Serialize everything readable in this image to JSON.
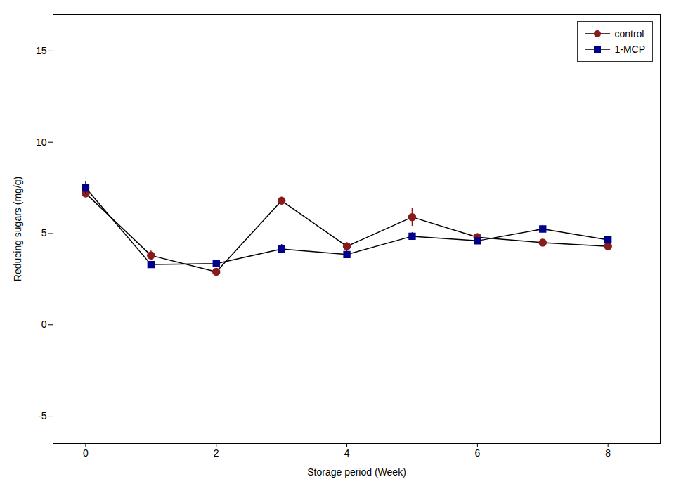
{
  "chart_data": {
    "type": "line",
    "xlabel": "Storage period (Week)",
    "ylabel": "Reducing sugars (mg/g)",
    "x": [
      0,
      1,
      2,
      3,
      4,
      5,
      6,
      7,
      8
    ],
    "color": "#000000",
    "series": [
      {
        "name": "control",
        "color": "#8B1A1A",
        "marker": "circle",
        "values": [
          7.2,
          3.8,
          2.9,
          6.8,
          4.3,
          5.9,
          4.8,
          4.5,
          4.3
        ],
        "errors": [
          0.15,
          0.25,
          0.15,
          0.15,
          0.2,
          0.5,
          0.2,
          0.2,
          0.2
        ]
      },
      {
        "name": "1-MCP",
        "color": "#00008B",
        "marker": "square",
        "values": [
          7.5,
          3.3,
          3.35,
          4.15,
          3.85,
          4.85,
          4.6,
          5.25,
          4.65
        ],
        "errors": [
          0.35,
          0.15,
          0.2,
          0.25,
          0.2,
          0.2,
          0.2,
          0.2,
          0.2
        ]
      }
    ],
    "xlim": [
      -0.5,
      8.8
    ],
    "ylim": [
      -6.5,
      17
    ],
    "xticks": [
      0,
      2,
      4,
      6,
      8
    ],
    "yticks": [
      -5,
      0,
      5,
      10,
      15
    ],
    "legend": "upper right",
    "grid": false
  }
}
